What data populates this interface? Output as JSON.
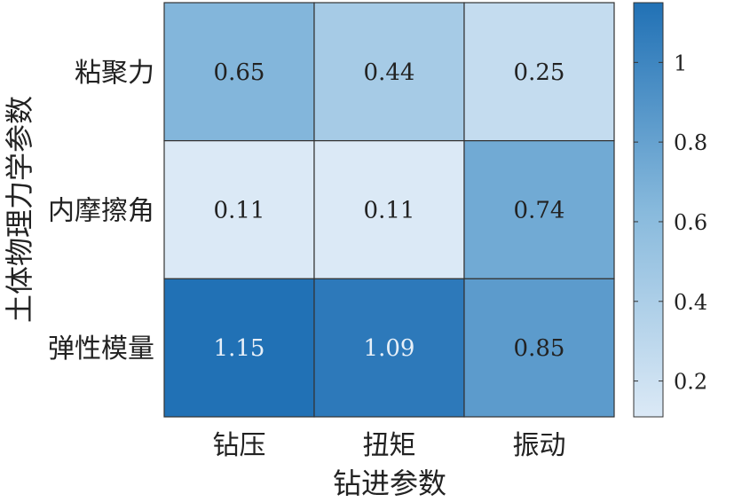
{
  "chart_data": {
    "type": "heatmap",
    "xlabel": "钻进参数",
    "ylabel": "土体物理力学参数",
    "x_categories": [
      "钻压",
      "扭矩",
      "振动"
    ],
    "y_categories": [
      "粘聚力",
      "内摩擦角",
      "弹性模量"
    ],
    "values": [
      [
        0.65,
        0.44,
        0.25
      ],
      [
        0.11,
        0.11,
        0.74
      ],
      [
        1.15,
        1.09,
        0.85
      ]
    ],
    "value_labels": [
      [
        "0.65",
        "0.44",
        "0.25"
      ],
      [
        "0.11",
        "0.11",
        "0.74"
      ],
      [
        "1.15",
        "1.09",
        "0.85"
      ]
    ],
    "colorbar": {
      "range": [
        0.11,
        1.15
      ],
      "ticks": [
        0.2,
        0.4,
        0.6,
        0.8,
        1
      ],
      "tick_labels": [
        "0.2",
        "0.4",
        "0.6",
        "0.8",
        "1"
      ],
      "colormap": "Blues",
      "color_low": "#dbe9f6",
      "color_high": "#2171b5"
    },
    "text_color_dark": "#222222",
    "text_color_light": "#e8f0f8"
  }
}
